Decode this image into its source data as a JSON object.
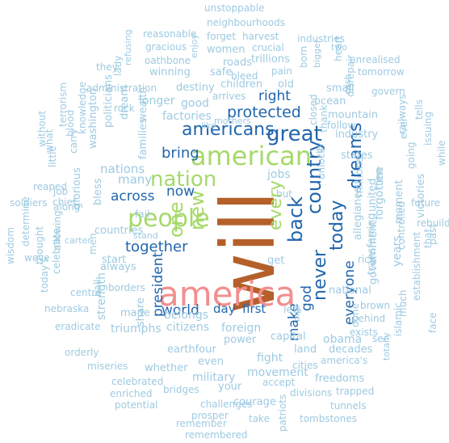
{
  "colors": {
    "brown": "#b5602a",
    "pink": "#f28e8e",
    "lime": "#a6d96a",
    "blue": "#2166ac",
    "lightblue": "#9ecae1"
  },
  "words": [
    {
      "text": "will",
      "color": "brown"
    },
    {
      "text": "america",
      "color": "pink"
    },
    {
      "text": "american",
      "color": "lime"
    },
    {
      "text": "people",
      "color": "lime"
    },
    {
      "text": "nation",
      "color": "lime"
    },
    {
      "text": "new",
      "color": "lime"
    },
    {
      "text": "one",
      "color": "lime"
    },
    {
      "text": "every",
      "color": "lime"
    },
    {
      "text": "back",
      "color": "blue"
    },
    {
      "text": "country",
      "color": "blue"
    },
    {
      "text": "never",
      "color": "blue"
    },
    {
      "text": "today",
      "color": "blue"
    },
    {
      "text": "dreams",
      "color": "blue"
    },
    {
      "text": "great",
      "color": "blue"
    },
    {
      "text": "americans",
      "color": "blue"
    },
    {
      "text": "protected",
      "color": "blue"
    },
    {
      "text": "bring",
      "color": "blue"
    },
    {
      "text": "now",
      "color": "blue"
    },
    {
      "text": "across",
      "color": "blue"
    },
    {
      "text": "together",
      "color": "blue"
    },
    {
      "text": "president",
      "color": "blue"
    },
    {
      "text": "world",
      "color": "blue"
    },
    {
      "text": "day",
      "color": "blue"
    },
    {
      "text": "first",
      "color": "blue"
    },
    {
      "text": "make",
      "color": "blue"
    },
    {
      "text": "god",
      "color": "blue"
    },
    {
      "text": "everyone",
      "color": "blue"
    },
    {
      "text": "right",
      "color": "blue"
    },
    {
      "text": "unstoppable",
      "color": "lightblue"
    },
    {
      "text": "neighbourhoods",
      "color": "lightblue"
    },
    {
      "text": "reasonable",
      "color": "lightblue"
    },
    {
      "text": "forget",
      "color": "lightblue"
    },
    {
      "text": "harvest",
      "color": "lightblue"
    },
    {
      "text": "industries",
      "color": "lightblue"
    },
    {
      "text": "gracious",
      "color": "lightblue"
    },
    {
      "text": "women",
      "color": "lightblue"
    },
    {
      "text": "crucial",
      "color": "lightblue"
    },
    {
      "text": "two",
      "color": "lightblue"
    },
    {
      "text": "oathbone",
      "color": "lightblue"
    },
    {
      "text": "roads",
      "color": "lightblue"
    },
    {
      "text": "trillions",
      "color": "lightblue"
    },
    {
      "text": "unrealised",
      "color": "lightblue"
    },
    {
      "text": "they",
      "color": "lightblue"
    },
    {
      "text": "winning",
      "color": "lightblue"
    },
    {
      "text": "safe",
      "color": "lightblue"
    },
    {
      "text": "bleed",
      "color": "lightblue"
    },
    {
      "text": "pain",
      "color": "lightblue"
    },
    {
      "text": "tomorrow",
      "color": "lightblue"
    },
    {
      "text": "administration",
      "color": "lightblue"
    },
    {
      "text": "destiny",
      "color": "lightblue"
    },
    {
      "text": "children",
      "color": "lightblue"
    },
    {
      "text": "old",
      "color": "lightblue"
    },
    {
      "text": "govern",
      "color": "lightblue"
    },
    {
      "text": "arrives",
      "color": "lightblue"
    },
    {
      "text": "small",
      "color": "lightblue"
    },
    {
      "text": "longer",
      "color": "lightblue"
    },
    {
      "text": "good",
      "color": "lightblue"
    },
    {
      "text": "ocean",
      "color": "lightblue"
    },
    {
      "text": "rock",
      "color": "lightblue"
    },
    {
      "text": "factories",
      "color": "lightblue"
    },
    {
      "text": "mountain",
      "color": "lightblue"
    },
    {
      "text": "follow",
      "color": "lightblue"
    },
    {
      "text": "mothers",
      "color": "lightblue"
    },
    {
      "text": "like",
      "color": "lightblue"
    },
    {
      "text": "industry",
      "color": "lightblue"
    },
    {
      "text": "states",
      "color": "lightblue"
    },
    {
      "text": "nations",
      "color": "lightblue"
    },
    {
      "text": "many",
      "color": "lightblue"
    },
    {
      "text": "jobs",
      "color": "lightblue"
    },
    {
      "text": "millions",
      "color": "lightblue"
    },
    {
      "text": "united",
      "color": "lightblue"
    },
    {
      "text": "time",
      "color": "lightblue"
    },
    {
      "text": "moment",
      "color": "lightblue"
    },
    {
      "text": "victories",
      "color": "lightblue"
    },
    {
      "text": "soldiers",
      "color": "lightblue"
    },
    {
      "text": "job",
      "color": "lightblue"
    },
    {
      "text": "along",
      "color": "lightblue"
    },
    {
      "text": "but",
      "color": "lightblue"
    },
    {
      "text": "future",
      "color": "lightblue"
    },
    {
      "text": "rebuild",
      "color": "lightblue"
    },
    {
      "text": "stand",
      "color": "lightblue"
    },
    {
      "text": "fail",
      "color": "lightblue"
    },
    {
      "text": "countries",
      "color": "lightblue"
    },
    {
      "text": "allegiance",
      "color": "lightblue"
    },
    {
      "text": "government",
      "color": "lightblue"
    },
    {
      "text": "years",
      "color": "lightblue"
    },
    {
      "text": "always",
      "color": "lightblue"
    },
    {
      "text": "start",
      "color": "lightblue"
    },
    {
      "text": "get",
      "color": "lightblue"
    },
    {
      "text": "rich",
      "color": "lightblue"
    },
    {
      "text": "national",
      "color": "lightblue"
    },
    {
      "text": "borders",
      "color": "lightblue"
    },
    {
      "text": "brown",
      "color": "lightblue"
    },
    {
      "text": "behind",
      "color": "lightblue"
    },
    {
      "text": "islamic",
      "color": "lightblue"
    },
    {
      "text": "centre",
      "color": "lightblue"
    },
    {
      "text": "left",
      "color": "lightblue"
    },
    {
      "text": "capital",
      "color": "lightblue"
    },
    {
      "text": "made",
      "color": "lightblue"
    },
    {
      "text": "belongs",
      "color": "lightblue"
    },
    {
      "text": "exists",
      "color": "lightblue"
    },
    {
      "text": "citizens",
      "color": "lightblue"
    },
    {
      "text": "foreign",
      "color": "lightblue"
    },
    {
      "text": "power",
      "color": "lightblue"
    },
    {
      "text": "nebraska",
      "color": "lightblue"
    },
    {
      "text": "eradicate",
      "color": "lightblue"
    },
    {
      "text": "obama",
      "color": "lightblue"
    },
    {
      "text": "see",
      "color": "lightblue"
    },
    {
      "text": "triumphs",
      "color": "lightblue"
    },
    {
      "text": "earthfour",
      "color": "lightblue"
    },
    {
      "text": "land",
      "color": "lightblue"
    },
    {
      "text": "decades",
      "color": "lightblue"
    },
    {
      "text": "orderly",
      "color": "lightblue"
    },
    {
      "text": "even",
      "color": "lightblue"
    },
    {
      "text": "fight",
      "color": "lightblue"
    },
    {
      "text": "america's",
      "color": "lightblue"
    },
    {
      "text": "miseries",
      "color": "lightblue"
    },
    {
      "text": "whether",
      "color": "lightblue"
    },
    {
      "text": "cities",
      "color": "lightblue"
    },
    {
      "text": "military",
      "color": "lightblue"
    },
    {
      "text": "movement",
      "color": "lightblue"
    },
    {
      "text": "freedoms",
      "color": "lightblue"
    },
    {
      "text": "celebrated",
      "color": "lightblue"
    },
    {
      "text": "your",
      "color": "lightblue"
    },
    {
      "text": "accept",
      "color": "lightblue"
    },
    {
      "text": "trapped",
      "color": "lightblue"
    },
    {
      "text": "enriched",
      "color": "lightblue"
    },
    {
      "text": "bridges",
      "color": "lightblue"
    },
    {
      "text": "divisions",
      "color": "lightblue"
    },
    {
      "text": "potential",
      "color": "lightblue"
    },
    {
      "text": "challenges",
      "color": "lightblue"
    },
    {
      "text": "courage",
      "color": "lightblue"
    },
    {
      "text": "tunnels",
      "color": "lightblue"
    },
    {
      "text": "prosper",
      "color": "lightblue"
    },
    {
      "text": "remember",
      "color": "lightblue"
    },
    {
      "text": "take",
      "color": "lightblue"
    },
    {
      "text": "tombstones",
      "color": "lightblue"
    },
    {
      "text": "remembered",
      "color": "lightblue"
    },
    {
      "text": "patriots",
      "color": "lightblue"
    },
    {
      "text": "refusing",
      "color": "lightblue"
    },
    {
      "text": "lady",
      "color": "lightblue"
    },
    {
      "text": "enjoy",
      "color": "lightblue"
    },
    {
      "text": "born",
      "color": "lightblue"
    },
    {
      "text": "bigger",
      "color": "lightblue"
    },
    {
      "text": "heart",
      "color": "lightblue"
    },
    {
      "text": "cash",
      "color": "lightblue"
    },
    {
      "text": "disrepair",
      "color": "lightblue"
    },
    {
      "text": "wealth",
      "color": "lightblue"
    },
    {
      "text": "politicians",
      "color": "lightblue"
    },
    {
      "text": "dream",
      "color": "lightblue"
    },
    {
      "text": "knowledge",
      "color": "lightblue"
    },
    {
      "text": "terrorism",
      "color": "lightblue"
    },
    {
      "text": "washington",
      "color": "lightblue"
    },
    {
      "text": "blood",
      "color": "lightblue"
    },
    {
      "text": "carry",
      "color": "lightblue"
    },
    {
      "text": "what",
      "color": "lightblue"
    },
    {
      "text": "without",
      "color": "lightblue"
    },
    {
      "text": "little",
      "color": "lightblue"
    },
    {
      "text": "families",
      "color": "lightblue"
    },
    {
      "text": "closed",
      "color": "lightblue"
    },
    {
      "text": "thank",
      "color": "lightblue"
    },
    {
      "text": "city",
      "color": "lightblue"
    },
    {
      "text": "unlock",
      "color": "lightblue"
    },
    {
      "text": "forgotten",
      "color": "lightblue"
    },
    {
      "text": "railways",
      "color": "lightblue"
    },
    {
      "text": "ever",
      "color": "lightblue"
    },
    {
      "text": "tells",
      "color": "lightblue"
    },
    {
      "text": "going",
      "color": "lightblue"
    },
    {
      "text": "issuing",
      "color": "lightblue"
    },
    {
      "text": "while",
      "color": "lightblue"
    },
    {
      "text": "reaped",
      "color": "lightblue"
    },
    {
      "text": "chief",
      "color": "lightblue"
    },
    {
      "text": "glorious",
      "color": "lightblue"
    },
    {
      "text": "bless",
      "color": "lightblue"
    },
    {
      "text": "men",
      "color": "lightblue"
    },
    {
      "text": "carter",
      "color": "lightblue"
    },
    {
      "text": "determine",
      "color": "lightblue"
    },
    {
      "text": "weve",
      "color": "lightblue"
    },
    {
      "text": "thought",
      "color": "lightblue"
    },
    {
      "text": "wisdom",
      "color": "lightblue"
    },
    {
      "text": "allowing",
      "color": "lightblue"
    },
    {
      "text": "celebrate",
      "color": "lightblue"
    },
    {
      "text": "today's",
      "color": "lightblue"
    },
    {
      "text": "hall",
      "color": "lightblue"
    },
    {
      "text": "strength",
      "color": "lightblue"
    },
    {
      "text": "share",
      "color": "lightblue"
    },
    {
      "text": "big",
      "color": "lightblue"
    },
    {
      "text": "done",
      "color": "lightblue"
    },
    {
      "text": "transferring",
      "color": "lightblue"
    },
    {
      "text": "controlled",
      "color": "lightblue"
    },
    {
      "text": "establishment",
      "color": "lightblue"
    },
    {
      "text": "that",
      "color": "lightblue"
    },
    {
      "text": "past",
      "color": "lightblue"
    },
    {
      "text": "much",
      "color": "lightblue"
    },
    {
      "text": "totally",
      "color": "lightblue"
    },
    {
      "text": "face",
      "color": "lightblue"
    }
  ]
}
